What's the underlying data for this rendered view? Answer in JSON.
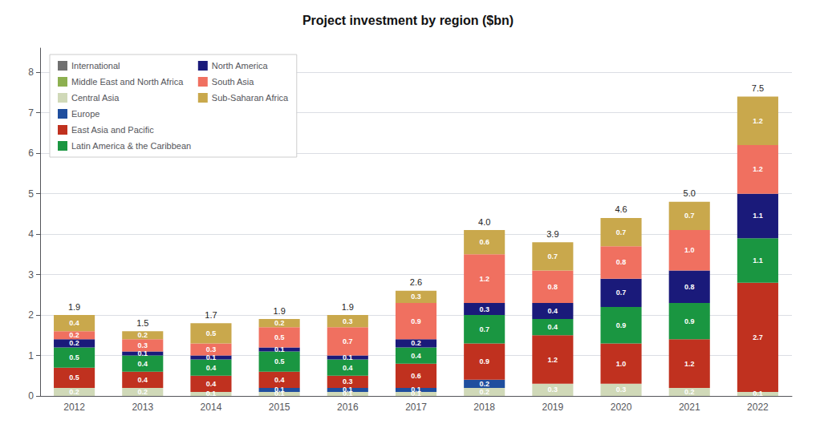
{
  "chart_data": {
    "type": "bar",
    "title": "Project investment by region ($bn)",
    "categories": [
      "2012",
      "2013",
      "2014",
      "2015",
      "2016",
      "2017",
      "2018",
      "2019",
      "2020",
      "2021",
      "2022"
    ],
    "stacked": true,
    "data_labels": true,
    "grid": true,
    "legend": "upper left",
    "ylim": [
      0,
      8.6
    ],
    "yticks": [
      0,
      1,
      2,
      3,
      4,
      5,
      6,
      7,
      8
    ],
    "series": [
      {
        "name": "International",
        "color": "#707070",
        "values": [
          0.0,
          0.0,
          0.0,
          0.0,
          0.0,
          0.0,
          0.0,
          0.0,
          0.0,
          0.0,
          0.0
        ],
        "value_labels": [
          null,
          null,
          null,
          null,
          null,
          null,
          null,
          null,
          null,
          null,
          null
        ]
      },
      {
        "name": "Middle East and North Africa",
        "color": "#8db050",
        "values": [
          0.0,
          0.0,
          0.0,
          0.0,
          0.0,
          0.0,
          0.0,
          0.0,
          0.0,
          0.0,
          0.0
        ],
        "value_labels": [
          null,
          null,
          null,
          null,
          null,
          null,
          null,
          null,
          null,
          null,
          null
        ]
      },
      {
        "name": "Central Asia",
        "color": "#d0d9b8",
        "values": [
          0.2,
          0.2,
          0.1,
          0.1,
          0.1,
          0.1,
          0.2,
          0.3,
          0.3,
          0.2,
          0.1
        ],
        "value_labels": [
          "0.2",
          "0.2",
          "0.1",
          "0.1",
          "0.1",
          "0.1",
          "0.2",
          "0.3",
          "0.3",
          "0.2",
          "0.1"
        ]
      },
      {
        "name": "Europe",
        "color": "#1f4e9e",
        "values": [
          0.0,
          0.0,
          0.0,
          0.1,
          0.1,
          0.1,
          0.2,
          0.0,
          0.0,
          0.0,
          0.0
        ],
        "value_labels": [
          null,
          null,
          null,
          "0.1",
          "0.1",
          "0.1",
          "0.2",
          null,
          null,
          null,
          null
        ]
      },
      {
        "name": "East Asia and Pacific",
        "color": "#c0311f",
        "values": [
          0.5,
          0.4,
          0.4,
          0.4,
          0.3,
          0.6,
          0.9,
          1.2,
          1.0,
          1.2,
          2.7
        ],
        "value_labels": [
          "0.5",
          "0.4",
          "0.4",
          "0.4",
          "0.3",
          "0.6",
          "0.9",
          "1.2",
          "1.0",
          "1.2",
          "2.7"
        ]
      },
      {
        "name": "Latin America & the Caribbean",
        "color": "#1a9641",
        "values": [
          0.5,
          0.4,
          0.4,
          0.5,
          0.4,
          0.4,
          0.7,
          0.4,
          0.9,
          0.9,
          1.1
        ],
        "value_labels": [
          "0.5",
          "0.4",
          "0.4",
          "0.5",
          "0.4",
          "0.4",
          "0.7",
          "0.4",
          "0.9",
          "0.9",
          "1.1"
        ]
      },
      {
        "name": "North America",
        "color": "#1a1a7a",
        "values": [
          0.2,
          0.1,
          0.1,
          0.1,
          0.1,
          0.2,
          0.3,
          0.4,
          0.7,
          0.8,
          1.1
        ],
        "value_labels": [
          "0.2",
          "0.1",
          "0.1",
          "0.1",
          "0.1",
          "0.2",
          "0.3",
          "0.4",
          "0.7",
          "0.8",
          "1.1"
        ]
      },
      {
        "name": "South Asia",
        "color": "#f07060",
        "values": [
          0.2,
          0.3,
          0.3,
          0.5,
          0.7,
          0.9,
          1.2,
          0.8,
          0.8,
          1.0,
          1.2
        ],
        "value_labels": [
          "0.2",
          "0.3",
          "0.3",
          "0.5",
          "0.7",
          "0.9",
          "1.2",
          "0.8",
          "0.8",
          "1.0",
          "1.2"
        ]
      },
      {
        "name": "Sub-Saharan Africa",
        "color": "#c9a84c",
        "values": [
          0.4,
          0.2,
          0.5,
          0.2,
          0.3,
          0.3,
          0.6,
          0.7,
          0.7,
          0.7,
          1.2
        ],
        "value_labels": [
          "0.4",
          "0.2",
          "0.5",
          "0.2",
          "0.3",
          "0.3",
          "0.6",
          "0.7",
          "0.7",
          "0.7",
          "1.2"
        ]
      }
    ],
    "totals": [
      1.9,
      1.5,
      1.7,
      1.9,
      1.9,
      2.6,
      4.0,
      3.9,
      4.6,
      5.0,
      7.5
    ],
    "total_labels": [
      "1.9",
      "1.5",
      "1.7",
      "1.9",
      "1.9",
      "2.6",
      "4.0",
      "3.9",
      "4.6",
      "5.0",
      "7.5"
    ]
  }
}
